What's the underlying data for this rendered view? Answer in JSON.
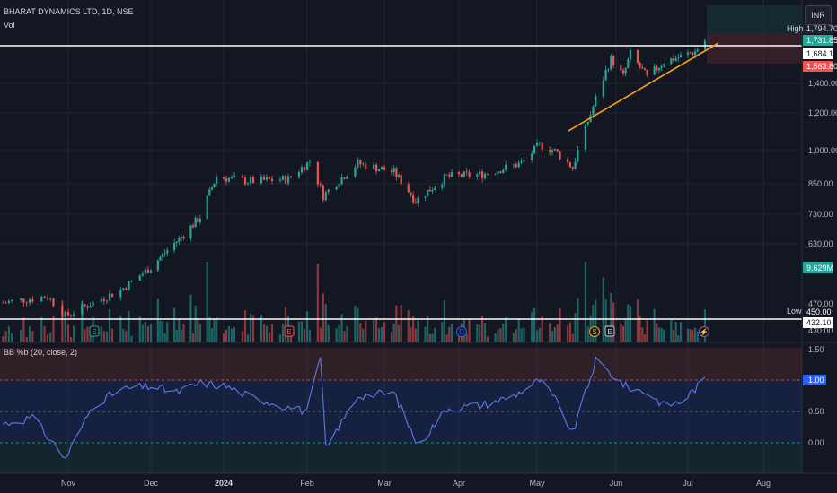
{
  "header": {
    "symbol": "BHARAT DYNAMICS LTD, 1D, NSE",
    "vol_label": "Vol",
    "currency": "INR"
  },
  "indicator": {
    "label": "BB %b (20, close, 2)",
    "axis_ticks": [
      "1.50",
      "1.00",
      "0.50",
      "0.00"
    ],
    "current_value": "1.00"
  },
  "price_axis": {
    "ticks": [
      "1,400.00",
      "1,200.00",
      "1,000.00",
      "850.00",
      "730.00",
      "630.00",
      "470.00",
      "430.00"
    ],
    "high_label": "High",
    "high_value": "1,794.70",
    "low_label": "Low",
    "low_value": "450.00",
    "level_1": "1,731.85",
    "level_2": "1,684.10",
    "level_3": "1,563.80",
    "level_4": "432.10",
    "volume_value": "9.629M"
  },
  "time_axis": {
    "labels": [
      "Nov",
      "Dec",
      "2024",
      "Feb",
      "Mar",
      "Apr",
      "May",
      "Jun",
      "Jul",
      "Aug"
    ]
  },
  "events": {
    "earnings": "E",
    "split": "S",
    "dividend": "D"
  },
  "colors": {
    "up": "#26a69a",
    "down": "#ef5350",
    "trendline": "#f7a21b",
    "bb_line": "#5b7be8",
    "background": "#131722"
  },
  "chart_data": [
    {
      "type": "candlestick",
      "title": "BHARAT DYNAMICS LTD, 1D, NSE",
      "x_range": [
        "2023-10-09",
        "2024-08-20"
      ],
      "y_scale": "log",
      "ylim": [
        430,
        1850
      ],
      "key_points": [
        {
          "date": "2023-10-10",
          "close": 470
        },
        {
          "date": "2023-10-25",
          "close": 485
        },
        {
          "date": "2023-10-31",
          "close": 440
        },
        {
          "date": "2023-11-20",
          "close": 500
        },
        {
          "date": "2023-12-01",
          "close": 560
        },
        {
          "date": "2023-12-15",
          "close": 660
        },
        {
          "date": "2023-12-22",
          "close": 720
        },
        {
          "date": "2023-12-29",
          "close": 880
        },
        {
          "date": "2024-01-10",
          "close": 860
        },
        {
          "date": "2024-01-25",
          "close": 870
        },
        {
          "date": "2024-02-02",
          "close": 950
        },
        {
          "date": "2024-02-07",
          "close": 800
        },
        {
          "date": "2024-02-20",
          "close": 940
        },
        {
          "date": "2024-03-05",
          "close": 900
        },
        {
          "date": "2024-03-14",
          "close": 780
        },
        {
          "date": "2024-03-27",
          "close": 880
        },
        {
          "date": "2024-04-10",
          "close": 890
        },
        {
          "date": "2024-04-25",
          "close": 940
        },
        {
          "date": "2024-05-02",
          "close": 1030
        },
        {
          "date": "2024-05-08",
          "close": 1000
        },
        {
          "date": "2024-05-15",
          "close": 920
        },
        {
          "date": "2024-05-22",
          "close": 1200
        },
        {
          "date": "2024-05-30",
          "close": 1580
        },
        {
          "date": "2024-06-04",
          "close": 1450
        },
        {
          "date": "2024-06-07",
          "close": 1620
        },
        {
          "date": "2024-06-14",
          "close": 1440
        },
        {
          "date": "2024-06-21",
          "close": 1560
        },
        {
          "date": "2024-06-28",
          "close": 1600
        },
        {
          "date": "2024-07-04",
          "close": 1640
        },
        {
          "date": "2024-07-08",
          "close": 1731.85
        }
      ],
      "high": 1794.7,
      "low": 450.0,
      "horizontal_levels": [
        1731.85,
        450.0
      ],
      "trendline": [
        {
          "date": "2024-05-20",
          "price": 1100
        },
        {
          "date": "2024-07-10",
          "price": 1700
        }
      ]
    },
    {
      "type": "bar",
      "title": "Vol",
      "last_value": "9.629M"
    },
    {
      "type": "line",
      "title": "BB %b (20, close, 2)",
      "ylim": [
        -0.35,
        1.6
      ],
      "bands": [
        1.0,
        0.5,
        0.0
      ],
      "x": [
        "2023-10-10",
        "2023-10-20",
        "2023-10-31",
        "2023-11-10",
        "2023-11-20",
        "2023-12-01",
        "2023-12-12",
        "2023-12-22",
        "2024-01-02",
        "2024-01-10",
        "2024-01-22",
        "2024-02-01",
        "2024-02-06",
        "2024-02-08",
        "2024-02-20",
        "2024-03-05",
        "2024-03-15",
        "2024-03-27",
        "2024-04-10",
        "2024-04-22",
        "2024-05-02",
        "2024-05-08",
        "2024-05-15",
        "2024-05-24",
        "2024-06-05",
        "2024-06-14",
        "2024-06-21",
        "2024-06-28",
        "2024-07-08"
      ],
      "values": [
        0.3,
        0.4,
        -0.25,
        0.6,
        0.85,
        0.9,
        0.8,
        0.95,
        0.9,
        0.75,
        0.6,
        0.5,
        1.35,
        -0.1,
        0.75,
        0.8,
        -0.05,
        0.55,
        0.6,
        0.75,
        1.0,
        0.7,
        0.15,
        1.3,
        0.9,
        0.8,
        0.6,
        0.65,
        1.0
      ]
    }
  ]
}
